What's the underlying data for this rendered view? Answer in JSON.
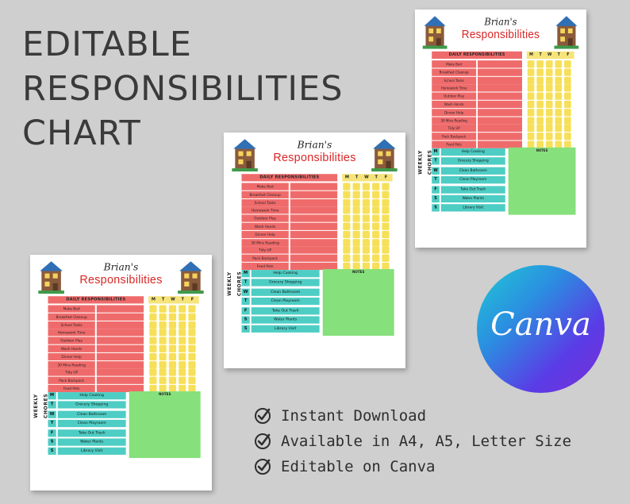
{
  "headline": [
    "EDITABLE",
    "RESPONSIBILITIES",
    "CHART"
  ],
  "sheet": {
    "name": "Brian's",
    "title": "Responsibilities",
    "daily_header": "DAILY RESPONSIBILITIES",
    "days": [
      "M",
      "T",
      "W",
      "T",
      "F"
    ],
    "tasks": [
      "Make Bed",
      "Breakfast Cleanup",
      "School Tasks",
      "Homework Time",
      "Outdoor Play",
      "Wash Hands",
      "Dinner Help",
      "30 Mins Reading",
      "Tidy UP",
      "Pack Backpack",
      "Feed Pets"
    ],
    "weekly_label": "WEEKLY CHORES",
    "notes_label": "NOTES",
    "weekly": [
      {
        "day": "M",
        "chore": "Help Cooking"
      },
      {
        "day": "T",
        "chore": "Grocery Shopping"
      },
      {
        "day": "W",
        "chore": "Clean Bathroom"
      },
      {
        "day": "T",
        "chore": "Clean Playroom"
      },
      {
        "day": "F",
        "chore": "Take Out Trash"
      },
      {
        "day": "S",
        "chore": "Water Plants"
      },
      {
        "day": "S",
        "chore": "Library Visit"
      }
    ]
  },
  "features": [
    "Instant Download",
    "Available in A4, A5, Letter Size",
    "Editable on Canva"
  ],
  "logo": {
    "text": "Canva"
  },
  "colors": {
    "red": "#ef6b6b",
    "yellow": "#f6e05a",
    "teal": "#4ecdc4",
    "green": "#86e07c",
    "title_red": "#d92525"
  }
}
